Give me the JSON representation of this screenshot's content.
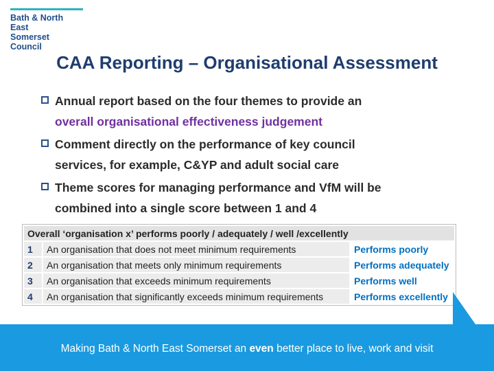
{
  "logo": {
    "lines": [
      "Bath & North East",
      "Somerset Council"
    ]
  },
  "title": "CAA Reporting – Organisational Assessment",
  "bullets": [
    {
      "lines": [
        "Annual report  based on the four themes to provide an",
        "overall organisational effectiveness judgement"
      ]
    },
    {
      "lines": [
        "Comment directly on the performance of key council",
        "services, for example, C&YP and adult social care"
      ]
    },
    {
      "lines": [
        "Theme scores for managing performance and VfM will be",
        "combined into a single score between 1 and 4"
      ]
    }
  ],
  "table": {
    "header": "Overall ‘organisation x’ performs poorly / adequately / well /excellently",
    "rows": [
      [
        "1",
        "An organisation that does not meet minimum requirements",
        "Performs poorly"
      ],
      [
        "2",
        "An organisation that meets only minimum requirements",
        "Performs adequately"
      ],
      [
        "3",
        "An organisation that exceeds minimum requirements",
        "Performs well"
      ],
      [
        "4",
        "An organisation that significantly exceeds minimum requirements",
        "Performs excellently"
      ]
    ]
  },
  "footer": {
    "parts": [
      "Making Bath & North East Somerset an ",
      "even",
      " better place to live, work and visit"
    ]
  }
}
